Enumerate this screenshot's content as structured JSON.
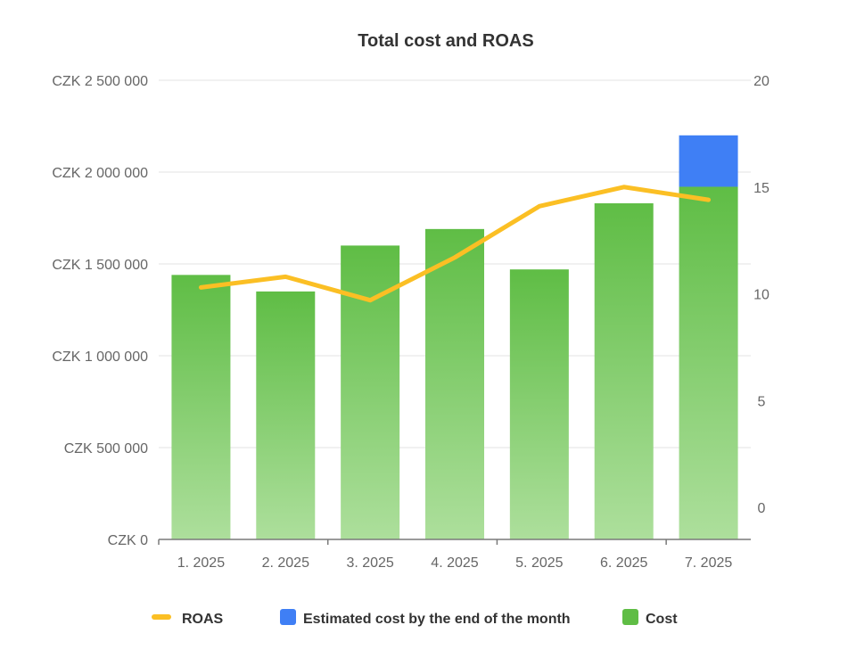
{
  "chart_data": {
    "type": "bar",
    "title": "Total cost and ROAS",
    "categories": [
      "1. 2025",
      "2. 2025",
      "3. 2025",
      "4. 2025",
      "5. 2025",
      "6. 2025",
      "7. 2025"
    ],
    "series": [
      {
        "name": "ROAS",
        "type": "line",
        "axis": "right",
        "color": "#fbbf24",
        "values": [
          10.3,
          10.8,
          9.7,
          11.7,
          14.1,
          15.0,
          14.4
        ]
      },
      {
        "name": "Estimated cost by the end of the month",
        "type": "bar",
        "axis": "left",
        "stacked": true,
        "color": "#3f7ff5",
        "values": [
          0,
          0,
          0,
          0,
          0,
          0,
          280000
        ]
      },
      {
        "name": "Cost",
        "type": "bar",
        "axis": "left",
        "stacked": true,
        "color": "#5fbd45",
        "values": [
          1440000,
          1350000,
          1600000,
          1690000,
          1470000,
          1830000,
          1920000
        ]
      }
    ],
    "y_left": {
      "min": 0,
      "max": 2500000,
      "ticks": [
        0,
        500000,
        1000000,
        1500000,
        2000000,
        2500000
      ],
      "tick_labels": [
        "CZK 0",
        "CZK 500 000",
        "CZK 1 000 000",
        "CZK 1 500 000",
        "CZK 2 000 000",
        "CZK 2 500 000"
      ]
    },
    "y_right": {
      "min": -1.5,
      "max": 20,
      "ticks": [
        0,
        5,
        10,
        15,
        20
      ],
      "tick_labels": [
        "0",
        "5",
        "10",
        "15",
        "20"
      ]
    },
    "grid": true,
    "legend": {
      "position": "bottom",
      "items": [
        "ROAS",
        "Estimated cost by the end of the month",
        "Cost"
      ]
    }
  }
}
